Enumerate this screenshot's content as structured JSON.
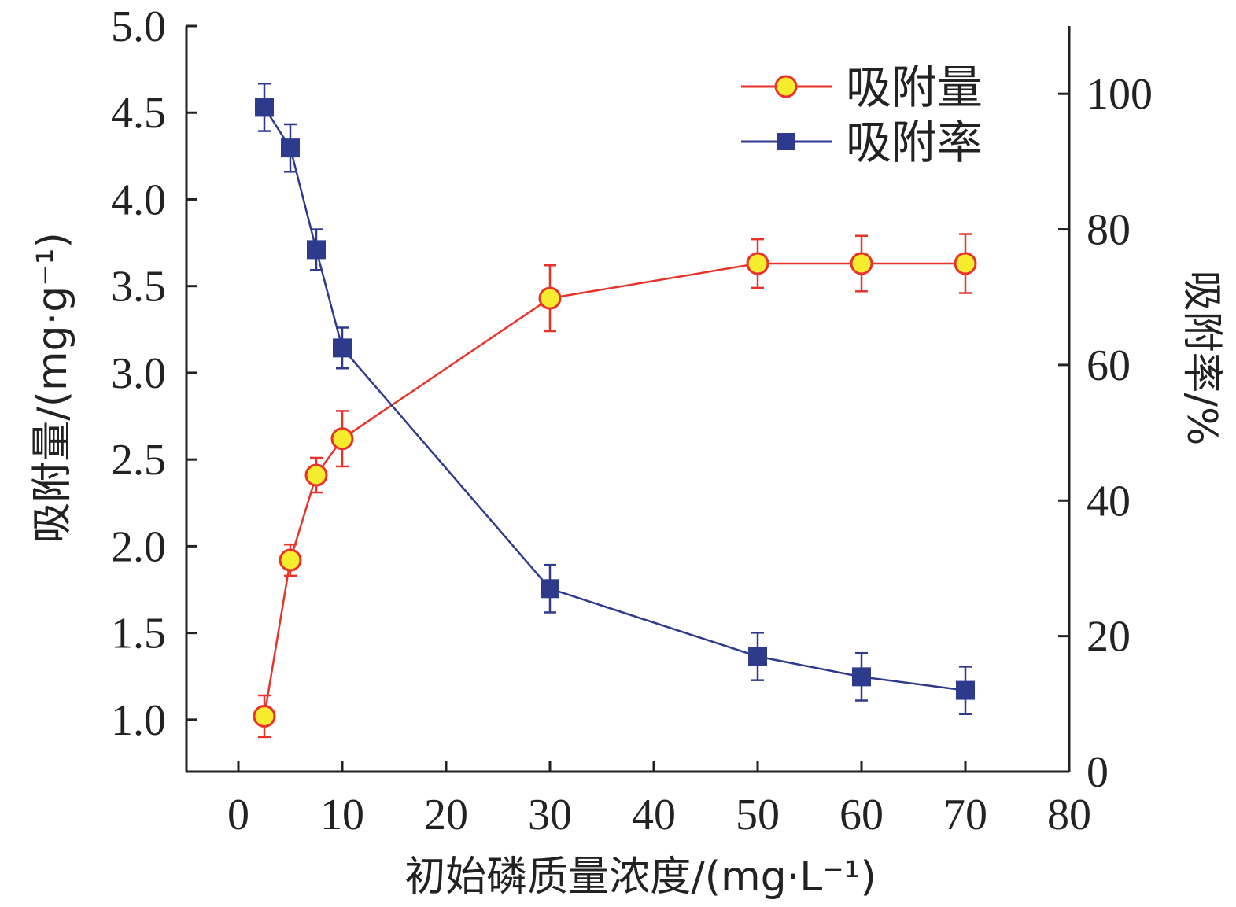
{
  "chart_data": {
    "type": "line",
    "title": "",
    "xlabel": "初始磷质量浓度/(mg·L⁻¹)",
    "ylabel_left": "吸附量/(mg·g⁻¹)",
    "ylabel_right": "吸附率/%",
    "xlim": [
      -5,
      80
    ],
    "ylim_left": [
      0.7,
      5.0
    ],
    "ylim_right": [
      0,
      110
    ],
    "x_ticks": [
      0,
      10,
      20,
      30,
      40,
      50,
      60,
      70,
      80
    ],
    "y_left_ticks": [
      1.0,
      1.5,
      2.0,
      2.5,
      3.0,
      3.5,
      4.0,
      4.5,
      5.0
    ],
    "y_right_ticks": [
      0,
      20,
      40,
      60,
      80,
      100
    ],
    "legend_position": "top-right",
    "grid": false,
    "series": [
      {
        "name": "吸附量",
        "axis": "left",
        "marker": "circle",
        "color": "#e8322a",
        "marker_fill": "#f5ec2e",
        "x": [
          2.5,
          5,
          7.5,
          10,
          30,
          50,
          60,
          70
        ],
        "y": [
          1.02,
          1.92,
          2.41,
          2.62,
          3.43,
          3.63,
          3.63,
          3.63
        ],
        "error": [
          0.12,
          0.09,
          0.1,
          0.16,
          0.19,
          0.14,
          0.16,
          0.17
        ]
      },
      {
        "name": "吸附率",
        "axis": "right",
        "marker": "square",
        "color": "#2e3a8c",
        "marker_fill": "#2e3a8c",
        "x": [
          2.5,
          5,
          7.5,
          10,
          30,
          50,
          60,
          70
        ],
        "y": [
          98,
          92,
          77,
          62.5,
          27,
          17,
          14,
          12
        ],
        "error": [
          3.5,
          3.5,
          3,
          3,
          3.5,
          3.5,
          3.5,
          3.5
        ]
      }
    ]
  }
}
